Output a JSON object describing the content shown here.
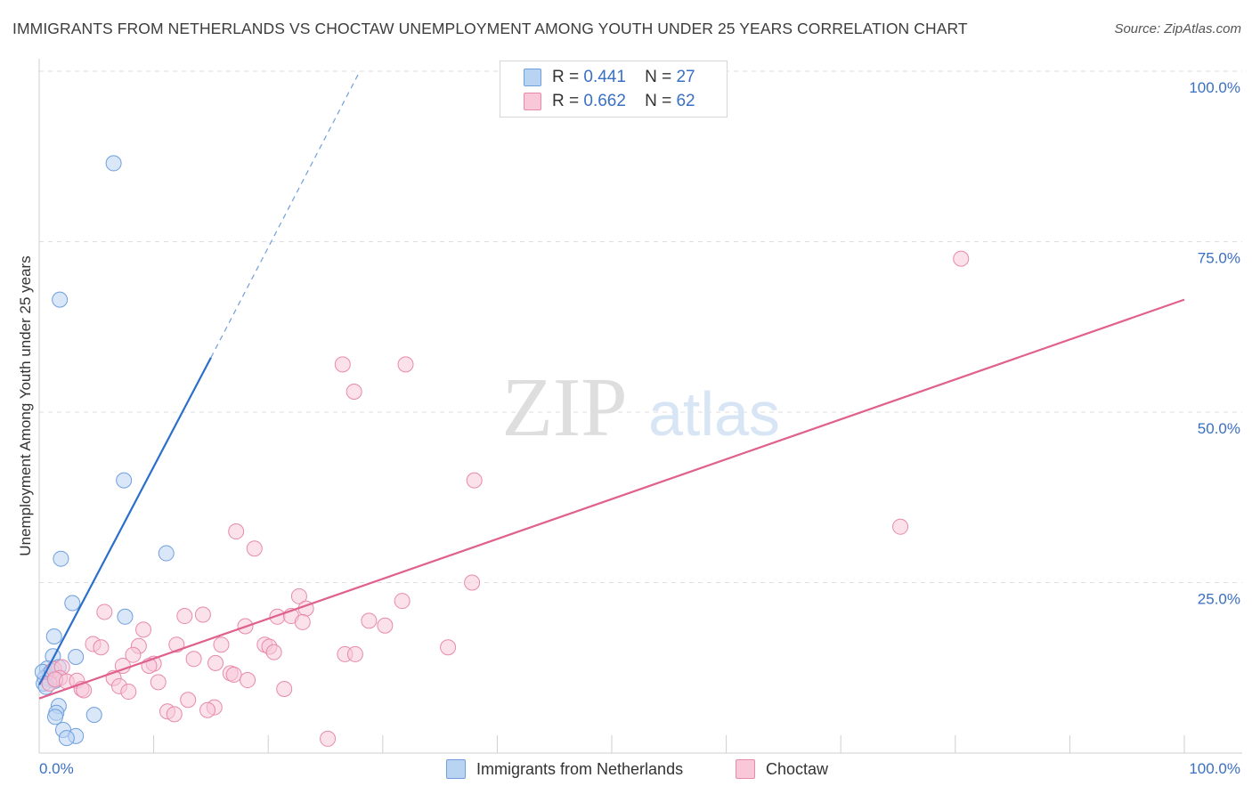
{
  "title": "IMMIGRANTS FROM NETHERLANDS VS CHOCTAW UNEMPLOYMENT AMONG YOUTH UNDER 25 YEARS CORRELATION CHART",
  "source": "Source: ZipAtlas.com",
  "watermark": {
    "zip": "ZIP",
    "atlas": "atlas"
  },
  "legend_top": [
    {
      "r_label": "R =",
      "r_value": "0.441",
      "n_label": "N =",
      "n_value": "27"
    },
    {
      "r_label": "R =",
      "r_value": "0.662",
      "n_label": "N =",
      "n_value": "62"
    }
  ],
  "legend_bottom": [
    "Immigrants from Netherlands",
    "Choctaw"
  ],
  "colors": {
    "blue_fill": "#b9d3f3",
    "blue_stroke": "#6f9fdc",
    "blue_line": "#2b6fcb",
    "pink_fill": "#f8c8d8",
    "pink_stroke": "#e88aaa",
    "pink_line": "#e0608e",
    "axis_text": "#3a6fc4",
    "grid": "#dedede"
  },
  "chart_data": {
    "type": "scatter",
    "title": "IMMIGRANTS FROM NETHERLANDS VS CHOCTAW UNEMPLOYMENT AMONG YOUTH UNDER 25 YEARS CORRELATION CHART",
    "xlabel": "",
    "ylabel": "Unemployment Among Youth under 25 years",
    "xlim": [
      0,
      100
    ],
    "ylim": [
      0,
      100
    ],
    "x_tick_labels": [
      "0.0%",
      "100.0%"
    ],
    "y_ticks": [
      25,
      50,
      75,
      100
    ],
    "y_tick_labels": [
      "25.0%",
      "50.0%",
      "75.0%",
      "100.0%"
    ],
    "series": [
      {
        "name": "Immigrants from Netherlands",
        "R": 0.441,
        "N": 27,
        "trend": {
          "x0": 0.0,
          "y0": 10.0,
          "x1": 15.0,
          "y1": 58.0,
          "dash_x1": 28.0,
          "dash_y1": 100.0
        },
        "points": [
          [
            6.5,
            86.5
          ],
          [
            1.8,
            66.5
          ],
          [
            7.4,
            40.0
          ],
          [
            1.9,
            28.5
          ],
          [
            11.1,
            29.3
          ],
          [
            2.9,
            22.0
          ],
          [
            7.5,
            20.0
          ],
          [
            1.3,
            17.1
          ],
          [
            3.2,
            14.1
          ],
          [
            1.2,
            14.2
          ],
          [
            0.7,
            12.4
          ],
          [
            0.9,
            11.7
          ],
          [
            1.7,
            12.6
          ],
          [
            0.5,
            11.0
          ],
          [
            0.9,
            10.8
          ],
          [
            0.4,
            10.2
          ],
          [
            1.4,
            10.6
          ],
          [
            0.6,
            9.7
          ],
          [
            1.7,
            6.9
          ],
          [
            1.5,
            5.9
          ],
          [
            4.8,
            5.6
          ],
          [
            1.4,
            5.3
          ],
          [
            2.1,
            3.4
          ],
          [
            3.2,
            2.5
          ],
          [
            2.4,
            2.2
          ],
          [
            0.3,
            11.9
          ],
          [
            1.1,
            12.0
          ]
        ]
      },
      {
        "name": "Choctaw",
        "R": 0.662,
        "N": 62,
        "trend": {
          "x0": 0.0,
          "y0": 8.0,
          "x1": 100.0,
          "y1": 66.5
        },
        "points": [
          [
            80.5,
            72.5
          ],
          [
            26.5,
            57.0
          ],
          [
            32.0,
            57.0
          ],
          [
            27.5,
            53.0
          ],
          [
            38.0,
            40.0
          ],
          [
            75.2,
            33.2
          ],
          [
            17.2,
            32.5
          ],
          [
            18.8,
            30.0
          ],
          [
            37.8,
            25.0
          ],
          [
            22.7,
            23.0
          ],
          [
            31.7,
            22.3
          ],
          [
            23.3,
            21.2
          ],
          [
            5.7,
            20.7
          ],
          [
            12.7,
            20.1
          ],
          [
            14.3,
            20.3
          ],
          [
            20.8,
            20.0
          ],
          [
            22.0,
            20.1
          ],
          [
            23.0,
            19.2
          ],
          [
            28.8,
            19.4
          ],
          [
            30.2,
            18.7
          ],
          [
            18.0,
            18.6
          ],
          [
            9.1,
            18.1
          ],
          [
            4.7,
            16.0
          ],
          [
            5.4,
            15.5
          ],
          [
            8.7,
            15.7
          ],
          [
            12.0,
            15.9
          ],
          [
            15.9,
            15.9
          ],
          [
            19.7,
            15.9
          ],
          [
            20.1,
            15.6
          ],
          [
            35.7,
            15.5
          ],
          [
            26.7,
            14.5
          ],
          [
            27.6,
            14.5
          ],
          [
            20.5,
            14.8
          ],
          [
            8.2,
            14.4
          ],
          [
            13.5,
            13.8
          ],
          [
            10.0,
            13.1
          ],
          [
            7.3,
            12.8
          ],
          [
            9.6,
            12.8
          ],
          [
            15.4,
            13.2
          ],
          [
            1.3,
            12.3
          ],
          [
            2.0,
            12.6
          ],
          [
            16.7,
            11.7
          ],
          [
            17.0,
            11.5
          ],
          [
            1.8,
            11.0
          ],
          [
            6.5,
            11.0
          ],
          [
            10.4,
            10.4
          ],
          [
            0.9,
            10.2
          ],
          [
            1.4,
            10.8
          ],
          [
            2.4,
            10.5
          ],
          [
            3.3,
            10.6
          ],
          [
            18.2,
            10.7
          ],
          [
            7.0,
            9.8
          ],
          [
            3.7,
            9.4
          ],
          [
            3.9,
            9.2
          ],
          [
            7.8,
            9.0
          ],
          [
            21.4,
            9.4
          ],
          [
            13.0,
            7.8
          ],
          [
            15.3,
            6.7
          ],
          [
            14.7,
            6.3
          ],
          [
            11.2,
            6.1
          ],
          [
            11.8,
            5.7
          ],
          [
            25.2,
            2.1
          ]
        ]
      }
    ]
  }
}
